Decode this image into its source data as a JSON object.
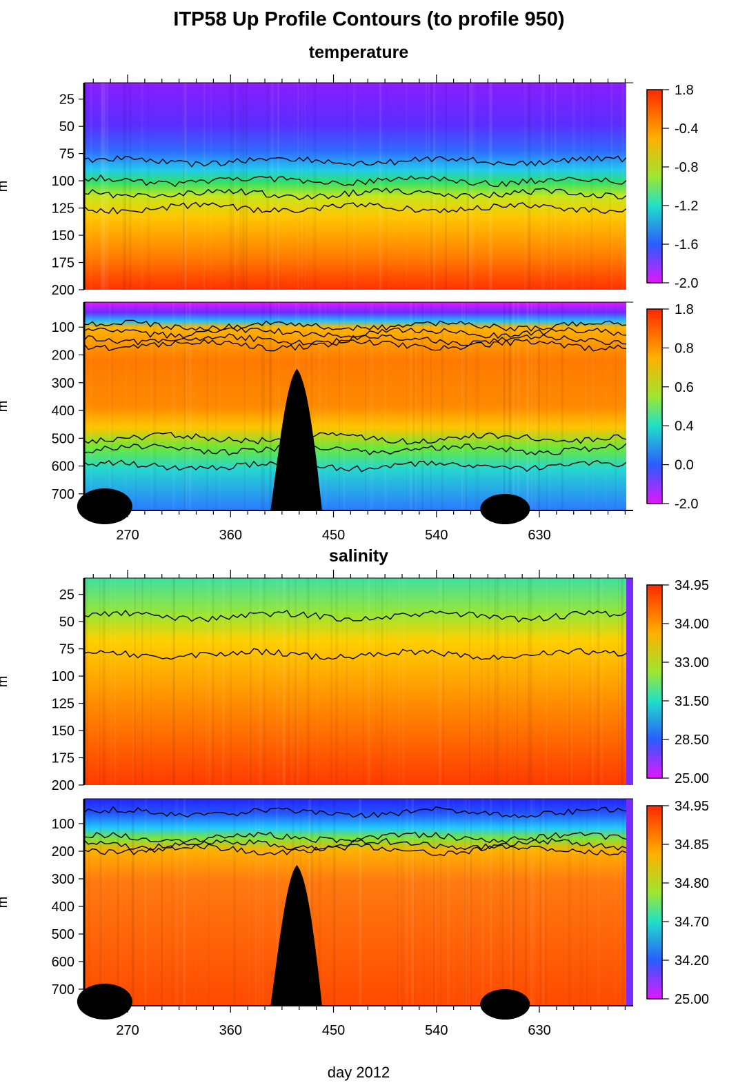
{
  "title": "ITP58 Up Profile Contours (to profile 950)",
  "x_axis_label": "day 2012",
  "x_tick_labels": [
    "270",
    "360",
    "450",
    "540",
    "630"
  ],
  "y_axis_label": "m",
  "sections": {
    "temperature": "temperature",
    "salinity": "salinity"
  },
  "chart_data": [
    {
      "type": "heatmap",
      "name": "temperature-upper",
      "section": "temperature",
      "x_ticks": [
        270,
        360,
        450,
        540,
        630
      ],
      "xlim": [
        232,
        712
      ],
      "y_ticks": [
        25,
        50,
        75,
        100,
        125,
        150,
        175,
        200
      ],
      "ylim": [
        200,
        10
      ],
      "colorbar_labels": [
        "1.8",
        "-0.4",
        "-0.8",
        "-1.2",
        "-1.6",
        "-2.0"
      ],
      "contour_depths": [
        82,
        100,
        112,
        125
      ]
    },
    {
      "type": "heatmap",
      "name": "temperature-lower",
      "section": "temperature",
      "x_ticks": [
        270,
        360,
        450,
        540,
        630
      ],
      "xlim": [
        232,
        712
      ],
      "y_ticks": [
        100,
        200,
        300,
        400,
        500,
        600,
        700
      ],
      "ylim": [
        760,
        10
      ],
      "colorbar_labels": [
        "1.8",
        "0.8",
        "0.6",
        "0.4",
        "0.0",
        "-2.0"
      ],
      "contour_depths": [
        95,
        120,
        145,
        165,
        500,
        540,
        600
      ]
    },
    {
      "type": "heatmap",
      "name": "salinity-upper",
      "section": "salinity",
      "x_ticks": [
        270,
        360,
        450,
        540,
        630
      ],
      "xlim": [
        232,
        712
      ],
      "y_ticks": [
        25,
        50,
        75,
        100,
        125,
        150,
        175,
        200
      ],
      "ylim": [
        200,
        10
      ],
      "colorbar_labels": [
        "34.95",
        "34.00",
        "33.00",
        "31.50",
        "28.50",
        "25.00"
      ],
      "contour_depths": [
        45,
        80
      ]
    },
    {
      "type": "heatmap",
      "name": "salinity-lower",
      "section": "salinity",
      "x_ticks": [
        270,
        360,
        450,
        540,
        630
      ],
      "xlim": [
        232,
        712
      ],
      "y_ticks": [
        100,
        200,
        300,
        400,
        500,
        600,
        700
      ],
      "ylim": [
        760,
        10
      ],
      "colorbar_labels": [
        "34.95",
        "34.85",
        "34.80",
        "34.70",
        "34.20",
        "25.00"
      ],
      "contour_depths": [
        60,
        150,
        175,
        195
      ]
    }
  ]
}
